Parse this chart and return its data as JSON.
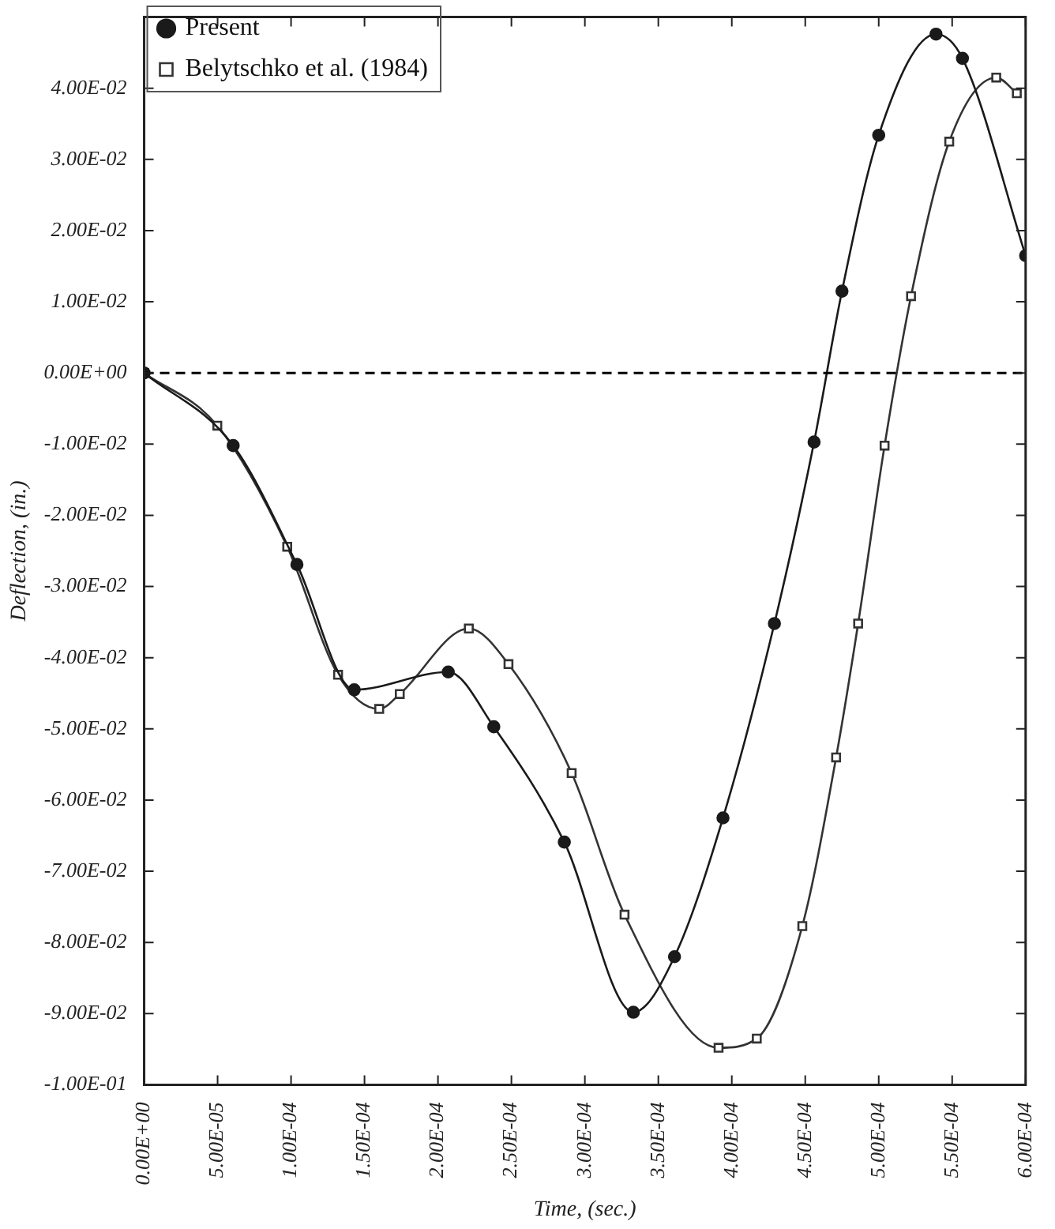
{
  "chart_data": {
    "type": "line",
    "xlabel": "Time, (sec.)",
    "ylabel": "Deflection, (in.)",
    "legend": "top left",
    "grid": false,
    "xlim": [
      0,
      0.0006
    ],
    "xticks": [
      {
        "value": 0,
        "label": "0.00E+00"
      },
      {
        "value": 5e-05,
        "label": "5.00E-05"
      },
      {
        "value": 0.0001,
        "label": "1.00E-04"
      },
      {
        "value": 0.00015,
        "label": "1.50E-04"
      },
      {
        "value": 0.0002,
        "label": "2.00E-04"
      },
      {
        "value": 0.00025,
        "label": "2.50E-04"
      },
      {
        "value": 0.0003,
        "label": "3.00E-04"
      },
      {
        "value": 0.00035,
        "label": "3.50E-04"
      },
      {
        "value": 0.0004,
        "label": "4.00E-04"
      },
      {
        "value": 0.00045,
        "label": "4.50E-04"
      },
      {
        "value": 0.0005,
        "label": "5.00E-04"
      },
      {
        "value": 0.00055,
        "label": "5.50E-04"
      },
      {
        "value": 0.0006,
        "label": "6.00E-04"
      }
    ],
    "ylim": [
      -0.1,
      0.05
    ],
    "yticks": [
      {
        "value": -0.1,
        "label": "-1.00E-01"
      },
      {
        "value": -0.09,
        "label": "-9.00E-02"
      },
      {
        "value": -0.08,
        "label": "-8.00E-02"
      },
      {
        "value": -0.07,
        "label": "-7.00E-02"
      },
      {
        "value": -0.06,
        "label": "-6.00E-02"
      },
      {
        "value": -0.05,
        "label": "-5.00E-02"
      },
      {
        "value": -0.04,
        "label": "-4.00E-02"
      },
      {
        "value": -0.03,
        "label": "-3.00E-02"
      },
      {
        "value": -0.02,
        "label": "-2.00E-02"
      },
      {
        "value": -0.01,
        "label": "-1.00E-02"
      },
      {
        "value": 0,
        "label": "0.00E+00"
      },
      {
        "value": 0.01,
        "label": "1.00E-02"
      },
      {
        "value": 0.02,
        "label": "2.00E-02"
      },
      {
        "value": 0.03,
        "label": "3.00E-02"
      },
      {
        "value": 0.04,
        "label": "4.00E-02"
      },
      {
        "value": 0.05,
        "label": null
      }
    ],
    "ref_lines": [
      {
        "axis": "y",
        "value": 0,
        "line_style": "dashed",
        "color": "#000000"
      }
    ],
    "series": [
      {
        "name": "Present",
        "color": "#1a1a1a",
        "marker": "circle",
        "x": [
          0,
          6.06e-05,
          0.000104,
          0.000143,
          0.000207,
          0.000238,
          0.000286,
          0.000333,
          0.000361,
          0.000394,
          0.000429,
          0.000456,
          0.000475,
          0.0005,
          0.000539,
          0.000557,
          0.0006
        ],
        "values": [
          0,
          -0.0102,
          -0.0269,
          -0.0445,
          -0.042,
          -0.0497,
          -0.0659,
          -0.0898,
          -0.082,
          -0.0625,
          -0.0352,
          -0.0097,
          0.0115,
          0.0334,
          0.0476,
          0.0442,
          0.0165
        ]
      },
      {
        "name": "Belytschko et al. (1984)",
        "color": "#333333",
        "marker": "square",
        "x": [
          0,
          4.98e-05,
          9.74e-05,
          0.000132,
          0.00016,
          0.000174,
          0.000221,
          0.000248,
          0.000291,
          0.000327,
          0.000391,
          0.000417,
          0.000448,
          0.000471,
          0.000486,
          0.000504,
          0.000522,
          0.000548,
          0.00058,
          0.000594
        ],
        "values": [
          0,
          -0.0074,
          -0.0244,
          -0.0424,
          -0.0472,
          -0.0451,
          -0.0359,
          -0.0409,
          -0.0562,
          -0.0761,
          -0.0948,
          -0.0935,
          -0.0777,
          -0.054,
          -0.0352,
          -0.0102,
          0.0108,
          0.0325,
          0.0415,
          0.0393
        ]
      }
    ]
  }
}
